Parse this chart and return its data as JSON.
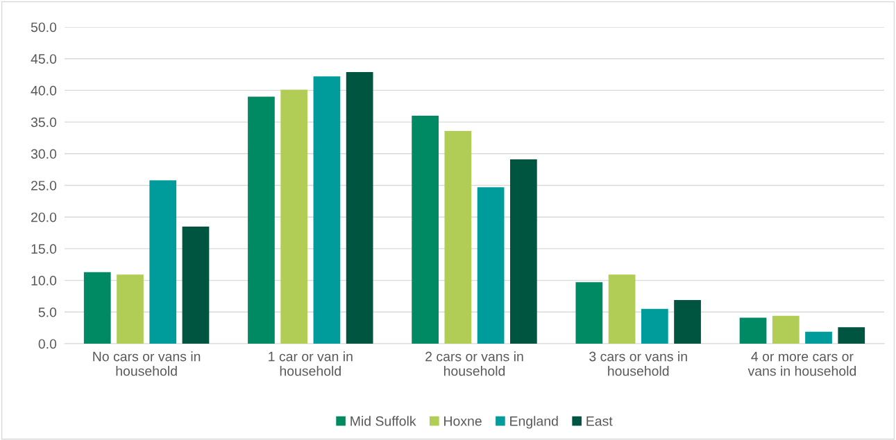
{
  "chart_data": {
    "type": "bar",
    "categories": [
      "No cars or vans in household",
      "1 car or van in household",
      "2 cars or vans in household",
      "3 cars or vans in household",
      "4 or more cars or vans in household"
    ],
    "series": [
      {
        "name": "Mid Suffolk",
        "color": "#008a64",
        "values": [
          11.3,
          39.0,
          36.0,
          9.7,
          4.1
        ]
      },
      {
        "name": "Hoxne",
        "color": "#b2cd55",
        "values": [
          10.9,
          40.1,
          33.6,
          10.9,
          4.4
        ]
      },
      {
        "name": "England",
        "color": "#009b9b",
        "values": [
          25.8,
          42.2,
          24.7,
          5.5,
          1.9
        ]
      },
      {
        "name": "East",
        "color": "#005541",
        "values": [
          18.5,
          42.9,
          29.1,
          6.9,
          2.6
        ]
      }
    ],
    "ylim": [
      0,
      50
    ],
    "yticks": [
      {
        "value": 0,
        "label": "0.0"
      },
      {
        "value": 5,
        "label": "5.0"
      },
      {
        "value": 10,
        "label": "10.0"
      },
      {
        "value": 15,
        "label": "15.0"
      },
      {
        "value": 20,
        "label": "20.0"
      },
      {
        "value": 25,
        "label": "25.0"
      },
      {
        "value": 30,
        "label": "30.0"
      },
      {
        "value": 35,
        "label": "35.0"
      },
      {
        "value": 40,
        "label": "40.0"
      },
      {
        "value": 45,
        "label": "45.0"
      },
      {
        "value": 50,
        "label": "50.0"
      }
    ],
    "grid": "y",
    "legend": "bottom"
  }
}
